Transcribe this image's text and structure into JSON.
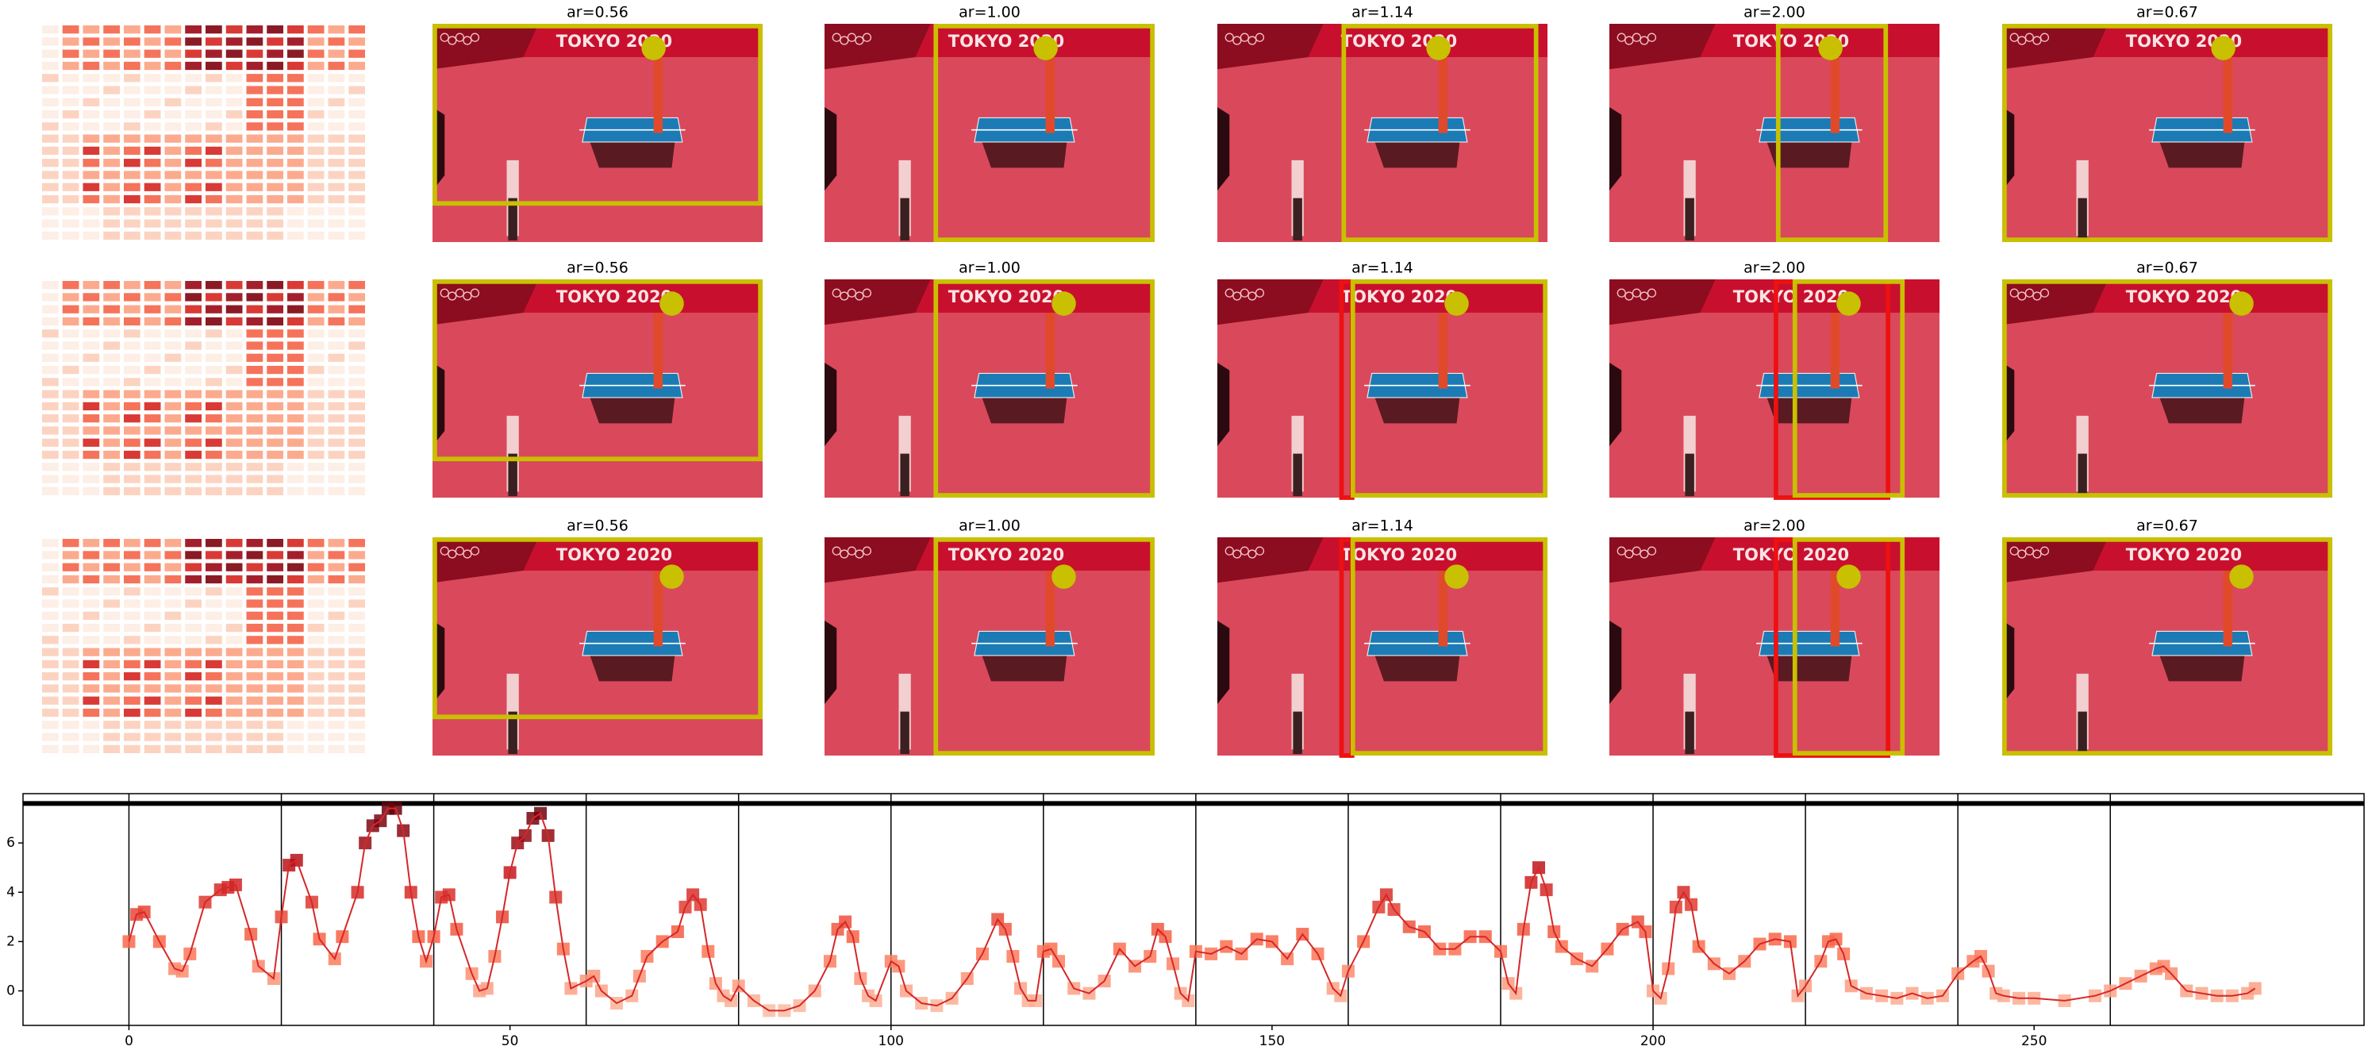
{
  "panels": {
    "rows": [
      [
        "ar=0.56",
        "ar=1.00",
        "ar=1.14",
        "ar=2.00",
        "ar=0.67"
      ],
      [
        "ar=0.56",
        "ar=1.00",
        "ar=1.14",
        "ar=2.00",
        "ar=0.67"
      ],
      [
        "ar=0.56",
        "ar=1.00",
        "ar=1.14",
        "ar=2.00",
        "ar=0.67"
      ]
    ],
    "photo_text": "TOKYO 2020"
  },
  "chart_data": {
    "type": "line",
    "color": "#d62728",
    "x": [
      0,
      1,
      2,
      4,
      6,
      7,
      8,
      10,
      12,
      13,
      14,
      16,
      17,
      19,
      20,
      21,
      22,
      24,
      25,
      27,
      28,
      30,
      31,
      32,
      33,
      34,
      35,
      36,
      37,
      38,
      39,
      40,
      41,
      42,
      43,
      45,
      46,
      47,
      48,
      49,
      50,
      51,
      52,
      53,
      54,
      55,
      56,
      57,
      58,
      60,
      61,
      62,
      64,
      66,
      67,
      68,
      70,
      72,
      73,
      74,
      75,
      76,
      77,
      78,
      79,
      80,
      82,
      84,
      86,
      88,
      90,
      92,
      93,
      94,
      95,
      96,
      97,
      98,
      100,
      101,
      102,
      104,
      106,
      108,
      110,
      112,
      114,
      115,
      116,
      117,
      118,
      119,
      120,
      121,
      122,
      124,
      126,
      128,
      130,
      132,
      134,
      135,
      136,
      137,
      138,
      139,
      140,
      142,
      144,
      146,
      148,
      150,
      152,
      154,
      156,
      158,
      159,
      160,
      162,
      164,
      165,
      166,
      168,
      170,
      172,
      174,
      176,
      178,
      180,
      181,
      182,
      183,
      184,
      185,
      186,
      187,
      188,
      190,
      192,
      194,
      196,
      198,
      199,
      200,
      201,
      202,
      203,
      204,
      205,
      206,
      208,
      210,
      212,
      214,
      216,
      218,
      219,
      220,
      222,
      223,
      224,
      225,
      226,
      228,
      230,
      232,
      234,
      236,
      238,
      240,
      242,
      243,
      244,
      245,
      246,
      248,
      250,
      254,
      258,
      260,
      262,
      264,
      266,
      267,
      268,
      270,
      272,
      274,
      276,
      278,
      279
    ],
    "values": [
      2.0,
      3.1,
      3.2,
      2.0,
      0.9,
      0.8,
      1.5,
      3.6,
      4.1,
      4.2,
      4.3,
      2.3,
      1.0,
      0.5,
      3.0,
      5.1,
      5.3,
      3.6,
      2.1,
      1.3,
      2.2,
      4.0,
      6.0,
      6.7,
      6.9,
      7.4,
      7.4,
      6.5,
      4.0,
      2.2,
      1.2,
      2.2,
      3.8,
      3.9,
      2.5,
      0.7,
      0.0,
      0.1,
      1.4,
      3.0,
      4.8,
      6.0,
      6.3,
      7.0,
      7.2,
      6.3,
      3.8,
      1.7,
      0.1,
      0.4,
      0.6,
      0.0,
      -0.5,
      -0.2,
      0.6,
      1.4,
      2.0,
      2.4,
      3.4,
      3.9,
      3.5,
      1.6,
      0.3,
      -0.2,
      -0.4,
      0.2,
      -0.4,
      -0.8,
      -0.8,
      -0.6,
      0.0,
      1.2,
      2.5,
      2.8,
      2.2,
      0.5,
      -0.2,
      -0.4,
      1.2,
      1.0,
      0.0,
      -0.5,
      -0.6,
      -0.3,
      0.5,
      1.5,
      2.9,
      2.5,
      1.4,
      0.1,
      -0.4,
      -0.4,
      1.6,
      1.7,
      1.2,
      0.1,
      -0.1,
      0.4,
      1.7,
      1.0,
      1.4,
      2.5,
      2.2,
      1.1,
      -0.1,
      -0.4,
      1.6,
      1.5,
      1.8,
      1.5,
      2.1,
      2.0,
      1.3,
      2.3,
      1.5,
      0.1,
      -0.2,
      0.8,
      2.0,
      3.4,
      3.9,
      3.3,
      2.6,
      2.4,
      1.7,
      1.7,
      2.2,
      2.2,
      1.6,
      0.3,
      -0.1,
      2.5,
      4.4,
      5.0,
      4.1,
      2.4,
      1.8,
      1.3,
      1.0,
      1.7,
      2.5,
      2.8,
      2.4,
      0.0,
      -0.3,
      0.9,
      3.4,
      4.0,
      3.5,
      1.8,
      1.1,
      0.7,
      1.2,
      1.9,
      2.1,
      2.0,
      -0.2,
      0.2,
      1.2,
      2.0,
      2.1,
      1.5,
      0.2,
      -0.1,
      -0.2,
      -0.3,
      -0.1,
      -0.3,
      -0.2,
      0.7,
      1.2,
      1.4,
      0.8,
      -0.1,
      -0.2,
      -0.3,
      -0.3,
      -0.4,
      -0.2,
      0.0,
      0.3,
      0.6,
      0.9,
      1.0,
      0.7,
      0.0,
      -0.1,
      -0.2,
      -0.2,
      -0.1,
      0.1
    ],
    "xlim": [
      -13.9,
      293.3
    ],
    "ylim": [
      -1.4,
      8.0
    ],
    "xticks": [
      0,
      50,
      100,
      150,
      200,
      250
    ],
    "yticks": [
      0,
      2,
      4,
      6
    ],
    "vlines": [
      0,
      20,
      40,
      60,
      80,
      100,
      120,
      140,
      160,
      180,
      200,
      220,
      240,
      260
    ],
    "hline": 7.6
  }
}
